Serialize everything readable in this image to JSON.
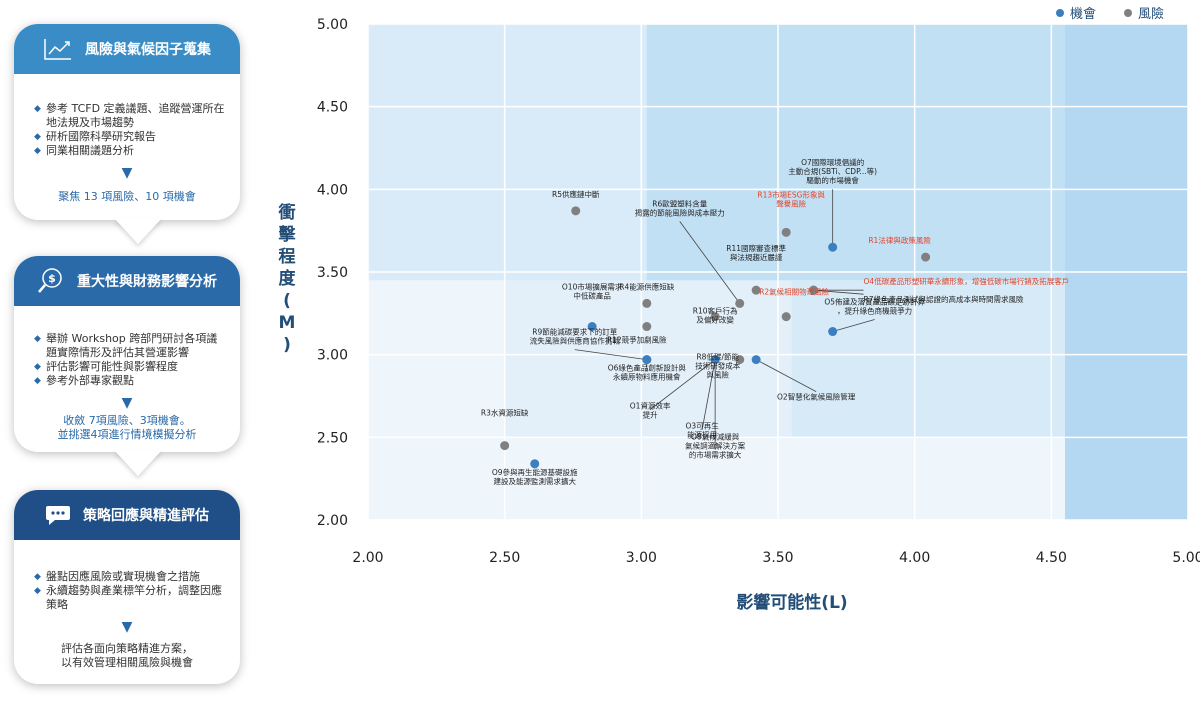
{
  "steps": [
    {
      "title": "風險與氣候因子蒐集",
      "icon": "trend-chart-icon",
      "color": "#3a8cc6",
      "bullets": [
        "參考 TCFD 定義議題、追蹤營運所在地法規及市場趨勢",
        "研析國際科學研究報告",
        "同業相關議題分析"
      ],
      "result": "聚焦 13 項風險、10 項機會"
    },
    {
      "title": "重大性與財務影響分析",
      "icon": "money-search-icon",
      "color": "#2a6aa8",
      "bullets": [
        "舉辦 Workshop 跨部門研討各項議題實際情形及評估其營運影響",
        "評估影響可能性與影響程度",
        "參考外部專家觀點"
      ],
      "result": "收斂 7項風險、3項機會。\n並挑選4項進行情境模擬分析"
    },
    {
      "title": "策略回應與精進評估",
      "icon": "chat-bubble-icon",
      "color": "#1f4f86",
      "bullets": [
        "盤點因應風險或實現機會之措施",
        "永續趨勢與產業標竿分析，調整因應策略"
      ],
      "result": "評估各面向策略精進方案，\n以有效管理相關風險與機會"
    }
  ],
  "chart_data": {
    "type": "scatter",
    "xlabel": "影響可能性(L)",
    "ylabel": "衝擊程度(M)",
    "xlim": [
      2.0,
      5.0
    ],
    "ylim": [
      2.0,
      5.0
    ],
    "xticks": [
      "2.00",
      "2.50",
      "3.00",
      "3.50",
      "4.00",
      "4.50",
      "5.00"
    ],
    "yticks": [
      "2.00",
      "2.50",
      "3.00",
      "3.50",
      "4.00",
      "4.50",
      "5.00"
    ],
    "grid": true,
    "legend_position": "top-right",
    "legend": [
      {
        "name": "機會",
        "color": "#3a7fc1"
      },
      {
        "name": "風險",
        "color": "#808080"
      }
    ],
    "points": [
      {
        "label": "O7國際環境倡議的\n主動合規(SBTi、CDP...等)\n驅動的市場機會",
        "x": 3.7,
        "y": 3.65,
        "kind": "機會",
        "label_color": "black"
      },
      {
        "label": "R13市場ESG形象與\n聲譽風險",
        "x": 3.53,
        "y": 3.74,
        "kind": "風險",
        "label_color": "red"
      },
      {
        "label": "R1法律與政策風險",
        "x": 4.04,
        "y": 3.59,
        "kind": "風險",
        "label_color": "red"
      },
      {
        "label": "O4低碳產品形塑研華永續形象，增強低碳市場行銷及拓展客戶",
        "x": 3.63,
        "y": 3.39,
        "kind": "機會",
        "label_color": "red"
      },
      {
        "label": "R7綠色產品測試與認證的高成本與時間需求風險",
        "x": 3.63,
        "y": 3.39,
        "kind": "風險",
        "label_color": "black"
      },
      {
        "label": "R5供應鏈中斷",
        "x": 2.76,
        "y": 3.87,
        "kind": "風險",
        "label_color": "black"
      },
      {
        "label": "R6歐盟塑料含量\n揭露的節能風險與成本壓力",
        "x": 3.36,
        "y": 3.31,
        "kind": "風險",
        "label_color": "black"
      },
      {
        "label": "R11國際審查標準\n與法規趨近嚴謹",
        "x": 3.42,
        "y": 3.39,
        "kind": "風險",
        "label_color": "black"
      },
      {
        "label": "R2氣候相關物理風險",
        "x": 3.53,
        "y": 3.23,
        "kind": "風險",
        "label_color": "red"
      },
      {
        "label": "R4能源供應短缺",
        "x": 3.02,
        "y": 3.31,
        "kind": "風險",
        "label_color": "black"
      },
      {
        "label": "O10市場擴展需求\n中低碳產品",
        "x": 2.82,
        "y": 3.17,
        "kind": "機會",
        "label_color": "black"
      },
      {
        "label": "R12競爭加劇風險",
        "x": 3.02,
        "y": 3.17,
        "kind": "風險",
        "label_color": "black"
      },
      {
        "label": "R10客戶行為\n及偏好改變",
        "x": 3.27,
        "y": 3.23,
        "kind": "風險",
        "label_color": "black"
      },
      {
        "label": "O5佈建及落實產品碳足跡計算\n，提升綠色商機競爭力",
        "x": 3.7,
        "y": 3.14,
        "kind": "機會",
        "label_color": "black"
      },
      {
        "label": "R9節能減碳要求下的訂單\n流失風險與供應商協作挑戰",
        "x": 3.02,
        "y": 2.97,
        "kind": "風險",
        "label_color": "black"
      },
      {
        "label": "O6綠色產品創新設計與\n永續原物料應用機會",
        "x": 3.02,
        "y": 2.97,
        "kind": "機會",
        "label_color": "black"
      },
      {
        "label": "R8低碳/節能\n技術研發成本\n與風險",
        "x": 3.36,
        "y": 2.97,
        "kind": "風險",
        "label_color": "black"
      },
      {
        "label": "O2智慧化氣候風險管理",
        "x": 3.42,
        "y": 2.97,
        "kind": "機會",
        "label_color": "black"
      },
      {
        "label": "O1資源效率\n提升",
        "x": 3.27,
        "y": 2.97,
        "kind": "機會",
        "label_color": "black"
      },
      {
        "label": "O3可再生\n能源採用",
        "x": 3.27,
        "y": 2.97,
        "kind": "機會",
        "label_color": "black"
      },
      {
        "label": "O8氣候減緩與\n氣候調適解決方案\n的市場需求擴大",
        "x": 3.27,
        "y": 2.97,
        "kind": "機會",
        "label_color": "black"
      },
      {
        "label": "R3水資源短缺",
        "x": 2.5,
        "y": 2.45,
        "kind": "風險",
        "label_color": "black"
      },
      {
        "label": "O9參與再生能源基礎設施\n建設及能源監測需求擴大",
        "x": 2.61,
        "y": 2.34,
        "kind": "機會",
        "label_color": "black"
      }
    ]
  }
}
